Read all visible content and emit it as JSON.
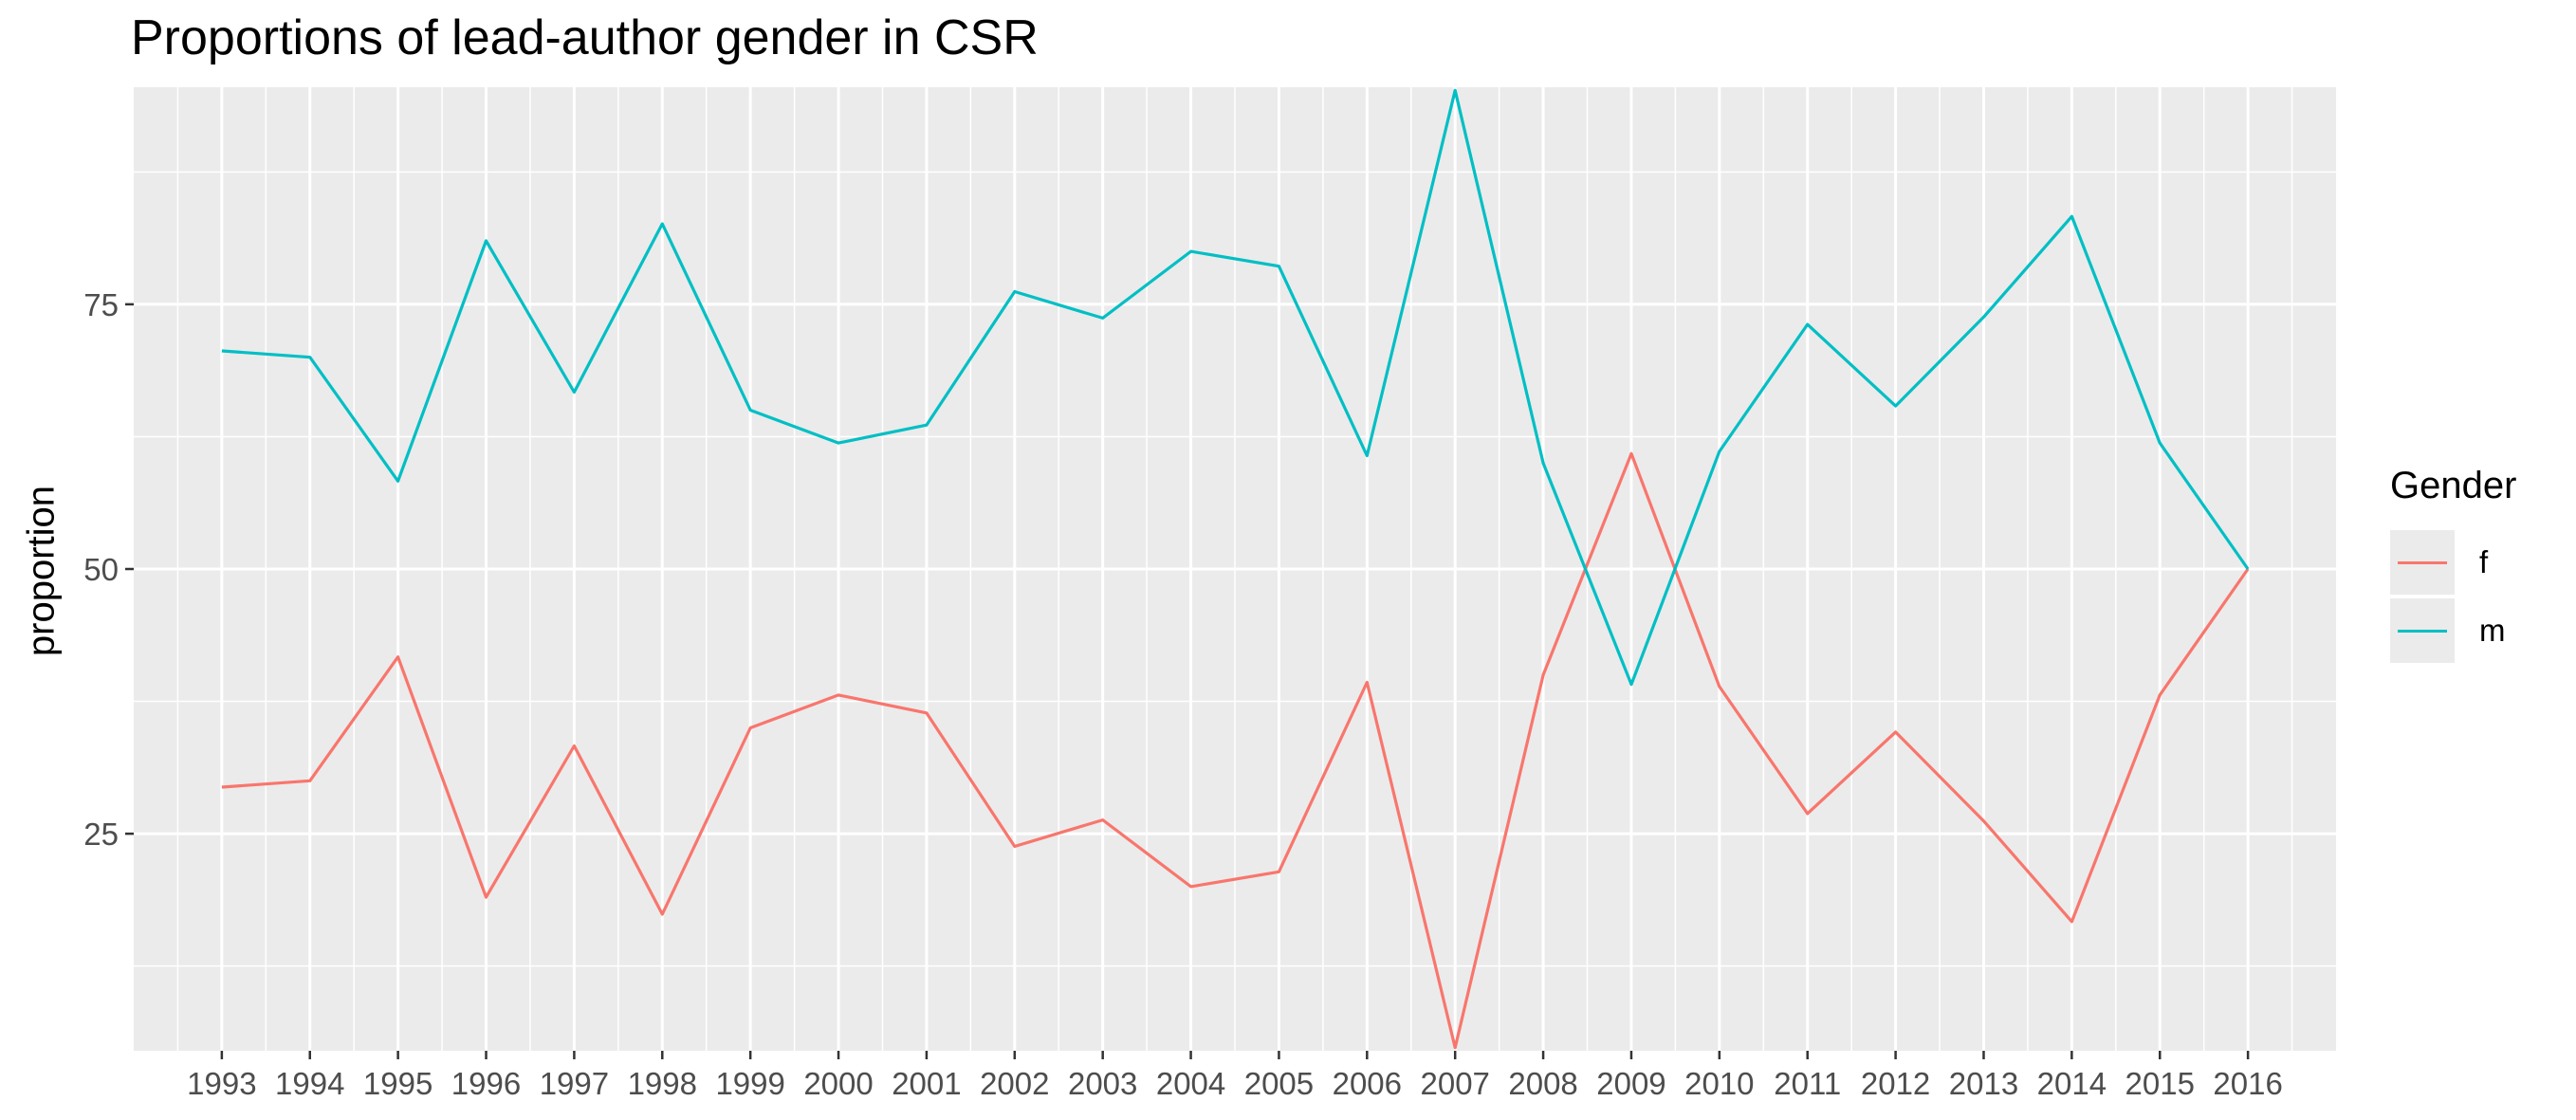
{
  "chart_data": {
    "type": "line",
    "title": "Proportions of lead-author gender in CSR",
    "xlabel": "",
    "ylabel": "proportion",
    "x": [
      1993,
      1994,
      1995,
      1996,
      1997,
      1998,
      1999,
      2000,
      2001,
      2002,
      2003,
      2004,
      2005,
      2006,
      2007,
      2008,
      2009,
      2010,
      2011,
      2012,
      2013,
      2014,
      2015,
      2016
    ],
    "x_tick_labels": [
      "1993",
      "1994",
      "1995",
      "1996",
      "1997",
      "1998",
      "1999",
      "2000",
      "2001",
      "2002",
      "2003",
      "2004",
      "2005",
      "2006",
      "2007",
      "2008",
      "2009",
      "2010",
      "2011",
      "2012",
      "2013",
      "2014",
      "2015",
      "2016"
    ],
    "y_ticks": [
      25,
      50,
      75
    ],
    "y_tick_labels": [
      "25",
      "50",
      "75"
    ],
    "xlim": [
      1992,
      2017
    ],
    "ylim": [
      4.5,
      95.5
    ],
    "grid": true,
    "legend": {
      "title": "Gender",
      "position": "right"
    },
    "series": [
      {
        "name": "f",
        "color": "#F8766D",
        "values": [
          29.4,
          30.0,
          41.7,
          19.0,
          33.3,
          17.4,
          35.0,
          38.1,
          36.4,
          23.8,
          26.3,
          20.0,
          21.4,
          39.3,
          4.8,
          40.0,
          60.9,
          38.9,
          26.9,
          34.6,
          26.2,
          16.7,
          38.1,
          50.0
        ]
      },
      {
        "name": "m",
        "color": "#00BFC4",
        "values": [
          70.6,
          70.0,
          58.3,
          81.0,
          66.7,
          82.6,
          65.0,
          61.9,
          63.6,
          76.2,
          73.7,
          80.0,
          78.6,
          60.7,
          95.2,
          60.0,
          39.1,
          61.1,
          73.1,
          65.4,
          73.8,
          83.3,
          61.9,
          50.0
        ]
      }
    ]
  }
}
